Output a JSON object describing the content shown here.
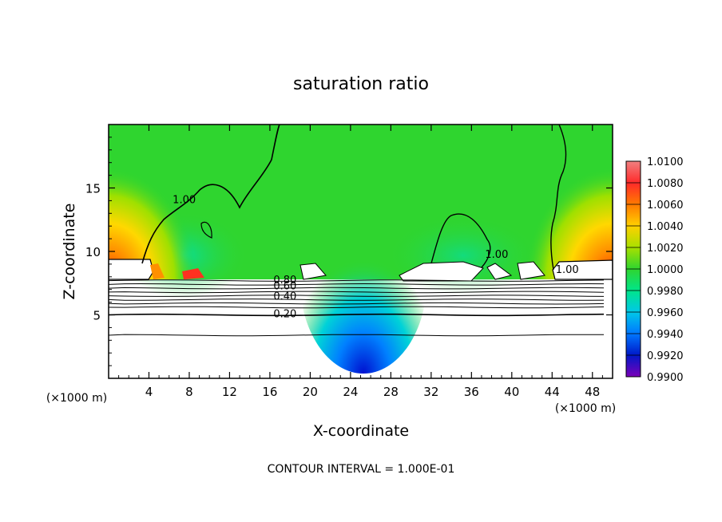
{
  "chart_data": {
    "type": "heatmap",
    "title": "saturation ratio",
    "xlabel": "X-coordinate",
    "ylabel": "Z-coordinate",
    "x_unit_left": "(×1000 m)",
    "x_unit_right": "(×1000 m)",
    "footer": "CONTOUR INTERVAL = 1.000E-01",
    "xlim": [
      0,
      50
    ],
    "ylim": [
      0,
      20
    ],
    "x_ticks": [
      "4",
      "8",
      "12",
      "16",
      "20",
      "24",
      "28",
      "32",
      "36",
      "40",
      "44",
      "48"
    ],
    "x_tick_values": [
      4,
      8,
      12,
      16,
      20,
      24,
      28,
      32,
      36,
      40,
      44,
      48
    ],
    "y_ticks": [
      "5",
      "10",
      "15"
    ],
    "y_tick_values": [
      5,
      10,
      15
    ],
    "colorbar": {
      "min": 0.99,
      "max": 1.01,
      "labels": [
        "1.0100",
        "1.0080",
        "1.0060",
        "1.0040",
        "1.0020",
        "1.0000",
        "0.9980",
        "0.9960",
        "0.9940",
        "0.9920",
        "0.9900"
      ],
      "colors": [
        "#f08080",
        "#ff2a2a",
        "#ff7a00",
        "#ffd000",
        "#a8e000",
        "#2fd52f",
        "#00e58a",
        "#00c8e8",
        "#0078ff",
        "#0018c8",
        "#7a00b8"
      ]
    },
    "contour_labels": [
      {
        "text": "1.00",
        "x": 7.5,
        "z": 13.8
      },
      {
        "text": "1.00",
        "x": 38.5,
        "z": 9.5
      },
      {
        "text": "1.00",
        "x": 45.5,
        "z": 8.3
      },
      {
        "text": "0.80",
        "x": 17.5,
        "z": 7.5
      },
      {
        "text": "0.60",
        "x": 17.5,
        "z": 7.0
      },
      {
        "text": "0.40",
        "x": 17.5,
        "z": 6.2
      },
      {
        "text": "0.20",
        "x": 17.5,
        "z": 4.8
      }
    ],
    "low_contours_z": [
      7.7,
      7.4,
      7.1,
      6.8,
      6.5,
      6.2,
      5.9,
      5.6,
      5.0,
      3.4
    ]
  }
}
